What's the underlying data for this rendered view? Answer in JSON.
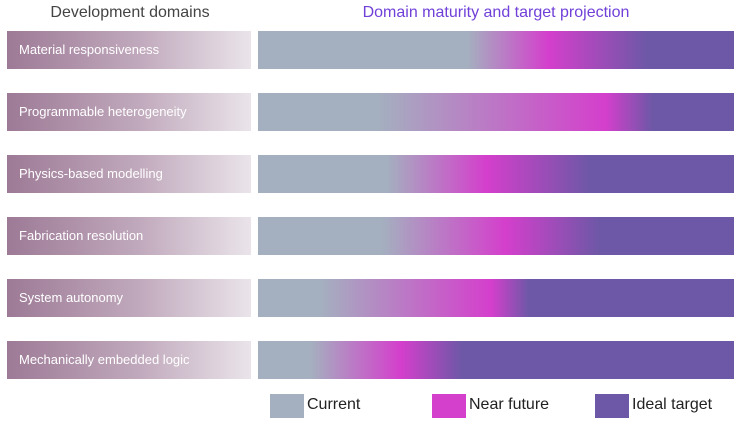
{
  "headers": {
    "left": "Development domains",
    "right": "Domain maturity and target projection"
  },
  "colors": {
    "current": "#a4b0bf",
    "near_future": "#d43fcc",
    "ideal_target": "#6c58a6"
  },
  "rows": [
    {
      "label": "Material responsiveness",
      "current_end": 0.44,
      "near_future_peak": 0.61,
      "ideal_start": 0.82
    },
    {
      "label": "Programmable heterogeneity",
      "current_end": 0.25,
      "near_future_peak": 0.73,
      "ideal_start": 0.83
    },
    {
      "label": "Physics-based modelling",
      "current_end": 0.27,
      "near_future_peak": 0.48,
      "ideal_start": 0.7
    },
    {
      "label": "Fabrication resolution",
      "current_end": 0.26,
      "near_future_peak": 0.52,
      "ideal_start": 0.72
    },
    {
      "label": "System autonomy",
      "current_end": 0.13,
      "near_future_peak": 0.49,
      "ideal_start": 0.57
    },
    {
      "label": "Mechanically embedded logic",
      "current_end": 0.11,
      "near_future_peak": 0.3,
      "ideal_start": 0.43
    }
  ],
  "legend": [
    {
      "label": "Current",
      "key": "current"
    },
    {
      "label": "Near future",
      "key": "near_future"
    },
    {
      "label": "Ideal target",
      "key": "ideal_target"
    }
  ]
}
